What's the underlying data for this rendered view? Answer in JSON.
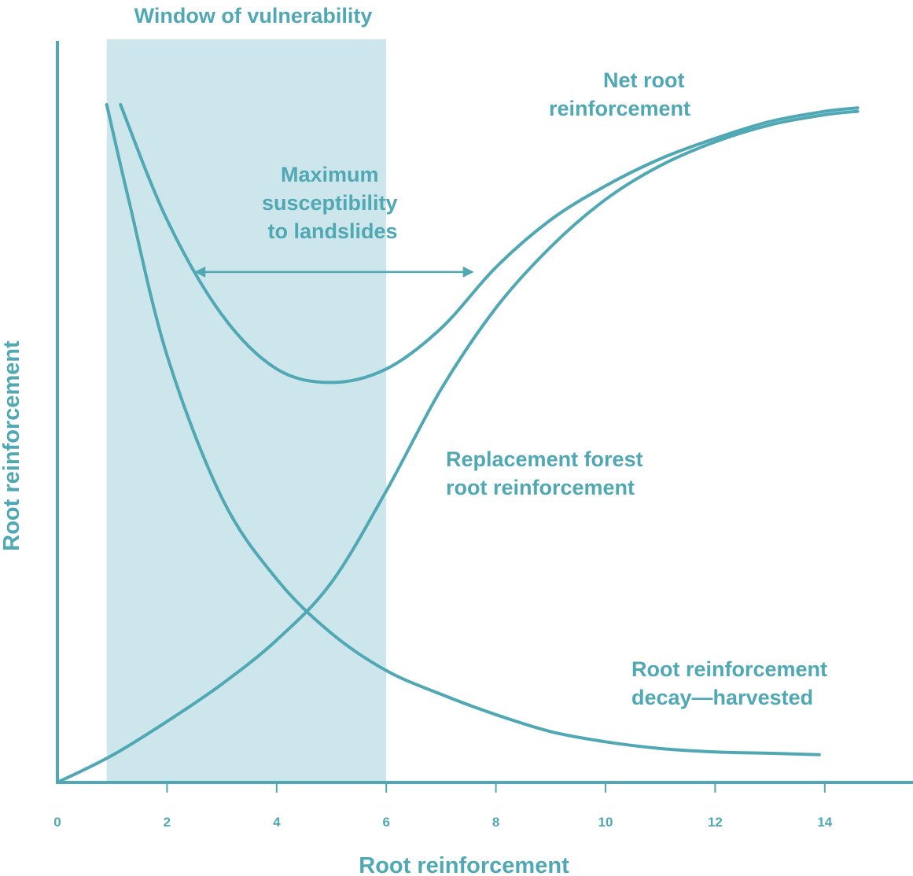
{
  "chart_data": {
    "type": "line",
    "xlabel": "Root reinforcement",
    "ylabel": "Root reinforcement",
    "xlim": [
      0,
      15.6
    ],
    "ylim": [
      0,
      100
    ],
    "x_ticks": [
      "0",
      "2",
      "4",
      "6",
      "8",
      "10",
      "12",
      "14"
    ],
    "grid": false,
    "shaded_region": {
      "label": "Window of vulnerability",
      "x_range": [
        0.9,
        6.0
      ],
      "color": "#cde6eb"
    },
    "range_arrow": {
      "label_lines": [
        "Maximum",
        "susceptibility",
        "to landslides"
      ],
      "x_range": [
        2.5,
        7.6
      ],
      "y": 75.3
    },
    "series": [
      {
        "name": "Root reinforcement decay—harvested",
        "label_lines": [
          "Root reinforcement",
          "decay—harvested"
        ],
        "x": [
          0.9,
          1.3,
          2,
          3,
          4,
          5,
          6,
          7,
          8,
          9,
          10,
          11,
          12,
          13,
          13.9
        ],
        "values": [
          100,
          86,
          63,
          42,
          30,
          22,
          16.5,
          13,
          10,
          7.5,
          6,
          5,
          4.5,
          4.3,
          4.1
        ]
      },
      {
        "name": "Replacement forest root reinforcement",
        "label_lines": [
          "Replacement forest",
          "root reinforcement"
        ],
        "x": [
          0,
          1,
          2,
          3,
          4,
          5,
          6,
          7,
          8,
          9,
          10,
          11,
          12,
          13,
          14,
          14.6
        ],
        "values": [
          0,
          4,
          9,
          14.5,
          21,
          29.5,
          43,
          58,
          70,
          79,
          86,
          91,
          94.5,
          97,
          98.5,
          99
        ]
      },
      {
        "name": "Net root reinforcement",
        "label_lines": [
          "Net root",
          "reinforcement"
        ],
        "x": [
          1.15,
          2,
          3,
          4,
          5,
          6,
          7,
          8,
          9,
          10,
          11,
          12,
          13,
          14,
          14.6
        ],
        "values": [
          100,
          83,
          69,
          61,
          59,
          61,
          67,
          76,
          83,
          88,
          92,
          95,
          97.5,
          99,
          99.5
        ]
      }
    ],
    "colors": {
      "line": "#4fa8b4",
      "shade": "#cde6eb"
    }
  }
}
